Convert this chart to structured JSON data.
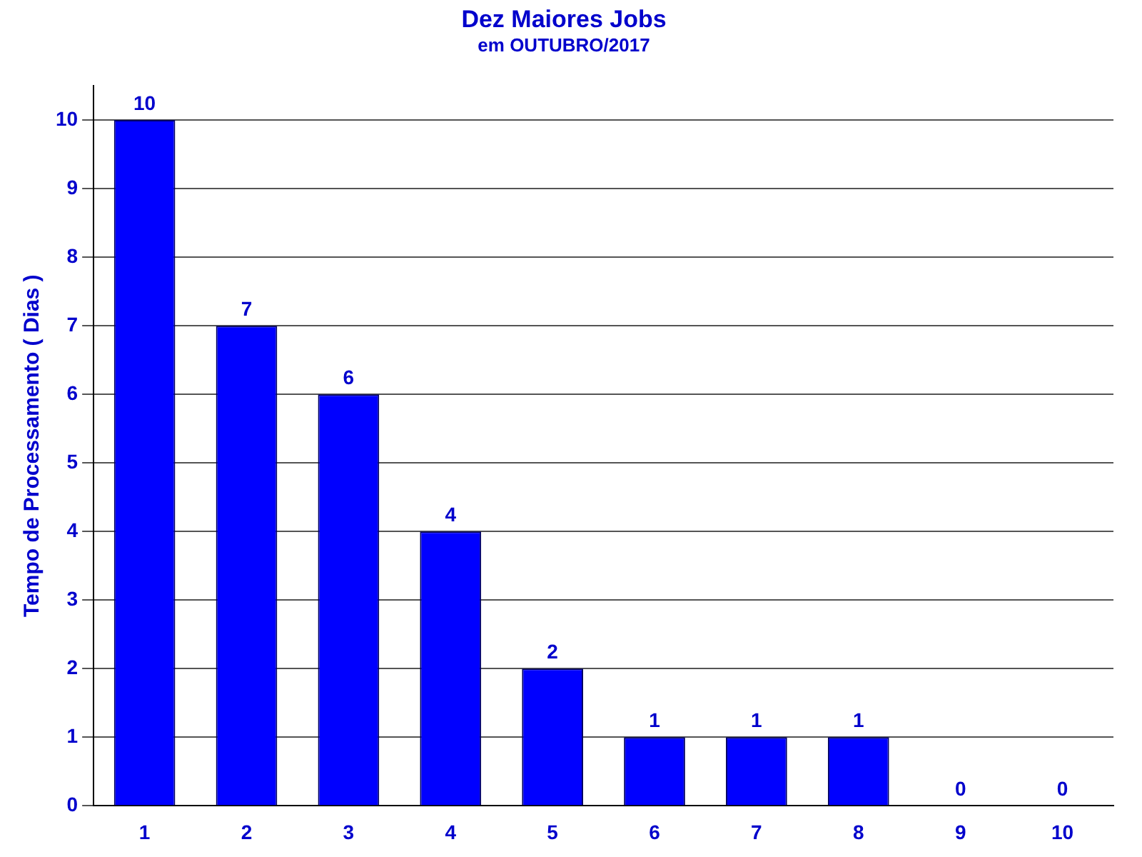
{
  "chart_data": {
    "type": "bar",
    "title": "Dez Maiores Jobs",
    "subtitle": "em OUTUBRO/2017",
    "ylabel": "Tempo de Processamento ( Dias )",
    "categories": [
      "1",
      "2",
      "3",
      "4",
      "5",
      "6",
      "7",
      "8",
      "9",
      "10"
    ],
    "values": [
      10,
      7,
      6,
      4,
      2,
      1,
      1,
      1,
      0,
      0
    ],
    "color": "#0000ff",
    "ylim": [
      0,
      10.5
    ],
    "yticks": [
      0,
      1,
      2,
      3,
      4,
      5,
      6,
      7,
      8,
      9,
      10
    ],
    "grid": "y",
    "data_labels": true,
    "legend": false
  }
}
